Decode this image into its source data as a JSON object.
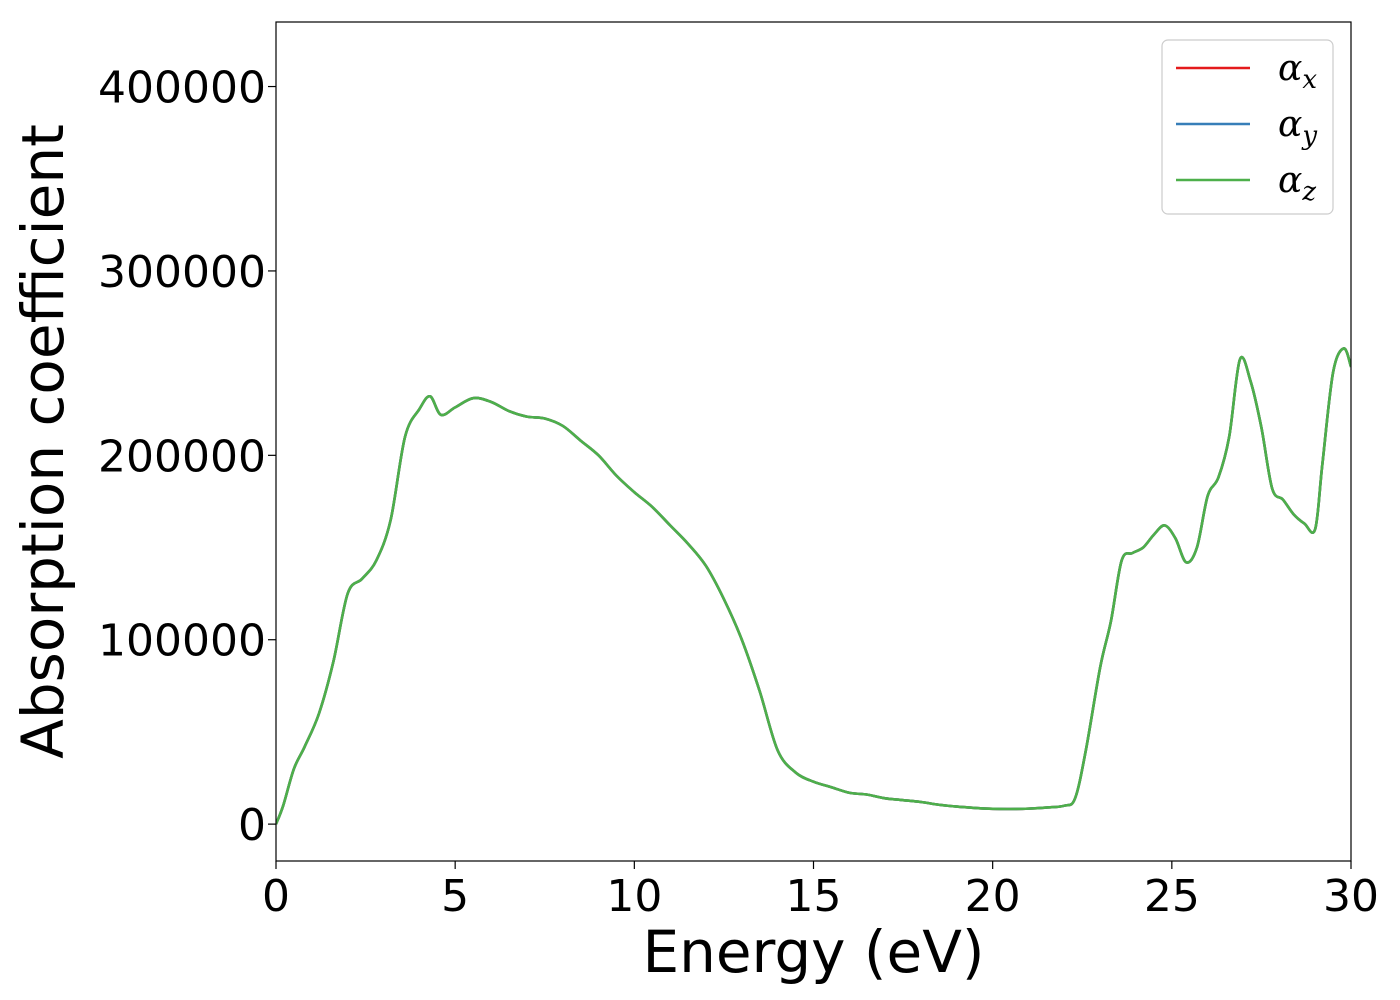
{
  "chart_data": {
    "type": "line",
    "title": "",
    "xlabel": "Energy (eV)",
    "ylabel": "Absorption coefficient",
    "xlim": [
      0,
      30
    ],
    "ylim": [
      -20000,
      435000
    ],
    "xticks": [
      0,
      5,
      10,
      15,
      20,
      25,
      30
    ],
    "xtick_labels": [
      "0",
      "5",
      "10",
      "15",
      "20",
      "25",
      "30"
    ],
    "yticks": [
      0,
      100000,
      200000,
      300000,
      400000
    ],
    "ytick_labels": [
      "0",
      "100000",
      "200000",
      "300000",
      "400000"
    ],
    "grid": false,
    "legend_position": "top-right",
    "series": [
      {
        "name": "α_x",
        "base": "α",
        "sub": "x",
        "color": "#e41a1c",
        "data_ref": "shared"
      },
      {
        "name": "α_y",
        "base": "α",
        "sub": "y",
        "color": "#377eb8",
        "data_ref": "shared"
      },
      {
        "name": "α_z",
        "base": "α",
        "sub": "z",
        "color": "#4daf4a",
        "data_ref": "shared"
      }
    ],
    "x": [
      0,
      0.2,
      0.5,
      0.8,
      1.2,
      1.6,
      2.0,
      2.4,
      2.8,
      3.2,
      3.6,
      4.0,
      4.3,
      4.6,
      5.0,
      5.5,
      6.0,
      6.5,
      7.0,
      7.5,
      8.0,
      8.5,
      9.0,
      9.5,
      10.0,
      10.5,
      11.0,
      11.5,
      12.0,
      12.5,
      13.0,
      13.5,
      14.0,
      14.5,
      15.0,
      15.5,
      16.0,
      16.5,
      17.0,
      17.5,
      18.0,
      18.5,
      19.0,
      19.5,
      20.0,
      20.5,
      21.0,
      21.5,
      22.0,
      22.3,
      22.6,
      23.0,
      23.3,
      23.6,
      23.9,
      24.2,
      24.5,
      24.8,
      25.1,
      25.4,
      25.7,
      26.0,
      26.3,
      26.6,
      26.9,
      27.2,
      27.5,
      27.8,
      28.1,
      28.4,
      28.7,
      29.0,
      29.2,
      29.5,
      29.8,
      30.0
    ],
    "y": [
      0,
      10000,
      30000,
      42000,
      60000,
      88000,
      125000,
      133000,
      143000,
      165000,
      210000,
      225000,
      232000,
      222000,
      226000,
      231000,
      229000,
      224000,
      221000,
      220000,
      216000,
      208000,
      200000,
      189000,
      180000,
      172000,
      162000,
      152000,
      140000,
      122000,
      100000,
      72000,
      40000,
      28000,
      23000,
      20000,
      17000,
      16000,
      14000,
      13000,
      12000,
      10500,
      9500,
      8800,
      8300,
      8200,
      8400,
      9000,
      10000,
      14000,
      40000,
      85000,
      110000,
      143000,
      147000,
      150000,
      157000,
      162000,
      155000,
      142000,
      150000,
      178000,
      188000,
      210000,
      252000,
      240000,
      215000,
      182000,
      176000,
      168000,
      163000,
      160000,
      195000,
      245000,
      258000,
      248000
    ]
  }
}
